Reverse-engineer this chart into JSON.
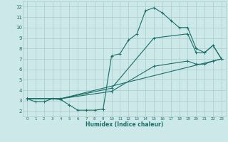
{
  "background_color": "#cce8e8",
  "grid_color": "#aacccc",
  "line_color": "#1a6e6a",
  "xlabel": "Humidex (Indice chaleur)",
  "xlim": [
    -0.5,
    23.5
  ],
  "ylim": [
    1.5,
    12.5
  ],
  "yticks": [
    2,
    3,
    4,
    5,
    6,
    7,
    8,
    9,
    10,
    11,
    12
  ],
  "xticks": [
    0,
    1,
    2,
    3,
    4,
    5,
    6,
    7,
    8,
    9,
    10,
    11,
    12,
    13,
    14,
    15,
    16,
    17,
    18,
    19,
    20,
    21,
    22,
    23
  ],
  "series": [
    {
      "x": [
        0,
        1,
        2,
        3,
        4,
        5,
        6,
        7,
        8,
        9,
        10,
        11,
        12,
        13,
        14,
        15,
        16,
        17,
        18,
        19,
        20,
        21,
        22,
        23
      ],
      "y": [
        3.2,
        2.9,
        2.9,
        3.2,
        3.1,
        2.6,
        2.1,
        2.1,
        2.1,
        2.2,
        7.3,
        7.5,
        8.8,
        9.4,
        11.6,
        11.9,
        11.4,
        10.7,
        10.0,
        10.0,
        8.0,
        7.6,
        8.3,
        7.0
      ]
    },
    {
      "x": [
        0,
        4,
        10,
        15,
        19,
        20,
        21,
        22,
        23
      ],
      "y": [
        3.2,
        3.2,
        4.2,
        9.0,
        9.4,
        7.6,
        7.6,
        8.3,
        7.0
      ]
    },
    {
      "x": [
        0,
        4,
        10,
        15,
        19,
        20,
        21,
        22,
        23
      ],
      "y": [
        3.2,
        3.2,
        3.9,
        6.3,
        6.8,
        6.5,
        6.5,
        6.8,
        7.0
      ]
    },
    {
      "x": [
        0,
        4,
        23
      ],
      "y": [
        3.2,
        3.2,
        7.0
      ]
    }
  ]
}
